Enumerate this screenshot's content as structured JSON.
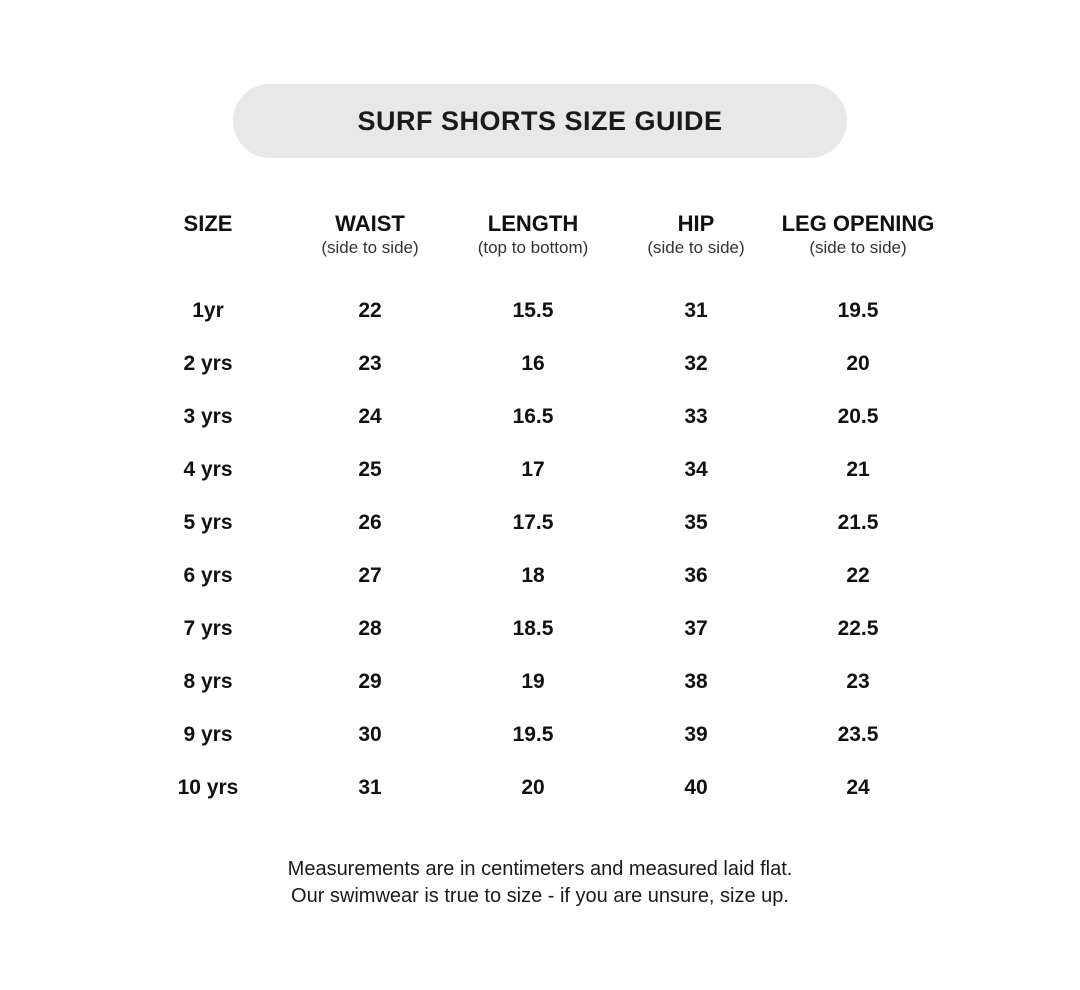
{
  "title": "SURF SHORTS SIZE GUIDE",
  "columns": [
    {
      "label": "SIZE",
      "sub": ""
    },
    {
      "label": "WAIST",
      "sub": "(side to side)"
    },
    {
      "label": "LENGTH",
      "sub": "(top to bottom)"
    },
    {
      "label": "HIP",
      "sub": "(side to side)"
    },
    {
      "label": "LEG OPENING",
      "sub": "(side to side)"
    }
  ],
  "rows": [
    [
      "1yr",
      "22",
      "15.5",
      "31",
      "19.5"
    ],
    [
      "2 yrs",
      "23",
      "16",
      "32",
      "20"
    ],
    [
      "3 yrs",
      "24",
      "16.5",
      "33",
      "20.5"
    ],
    [
      "4 yrs",
      "25",
      "17",
      "34",
      "21"
    ],
    [
      "5 yrs",
      "26",
      "17.5",
      "35",
      "21.5"
    ],
    [
      "6 yrs",
      "27",
      "18",
      "36",
      "22"
    ],
    [
      "7 yrs",
      "28",
      "18.5",
      "37",
      "22.5"
    ],
    [
      "8 yrs",
      "29",
      "19",
      "38",
      "23"
    ],
    [
      "9 yrs",
      "30",
      "19.5",
      "39",
      "23.5"
    ],
    [
      "10 yrs",
      "31",
      "20",
      "40",
      "24"
    ]
  ],
  "footer": {
    "line1": "Measurements are in centimeters and measured laid flat.",
    "line2": "Our swimwear is true to size - if you are unsure, size up."
  }
}
